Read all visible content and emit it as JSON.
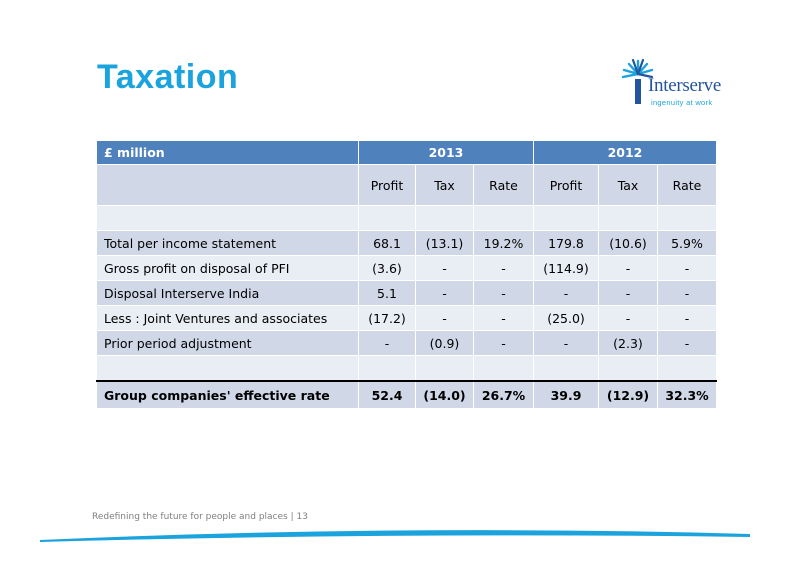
{
  "slide": {
    "title": "Taxation",
    "logo": {
      "name": "Interserve",
      "tagline": "ingenuity at work"
    },
    "footer": "Redefining the future for people and places | 13",
    "colors": {
      "title": "#1aa3dc",
      "header": "#4f81bd",
      "row_light": "#e9edf4",
      "row_dark": "#d0d8e8",
      "brand": "#23559c"
    }
  },
  "table": {
    "corner_label": "£ million",
    "years": [
      "2013",
      "2012"
    ],
    "subheaders": [
      "Profit",
      "Tax",
      "Rate",
      "Profit",
      "Tax",
      "Rate"
    ],
    "rows": [
      {
        "label": "",
        "cells": [
          "",
          "",
          "",
          "",
          "",
          ""
        ]
      },
      {
        "label": "Total per income statement",
        "cells": [
          "68.1",
          "(13.1)",
          "19.2%",
          "179.8",
          "(10.6)",
          "5.9%"
        ]
      },
      {
        "label": "Gross profit on disposal of PFI",
        "cells": [
          "(3.6)",
          "-",
          "-",
          "(114.9)",
          "-",
          "-"
        ]
      },
      {
        "label": "Disposal Interserve India",
        "cells": [
          "5.1",
          "-",
          "-",
          "-",
          "-",
          "-"
        ]
      },
      {
        "label": "Less : Joint Ventures and associates",
        "cells": [
          "(17.2)",
          "-",
          "-",
          "(25.0)",
          "-",
          "-"
        ]
      },
      {
        "label": "Prior period adjustment",
        "cells": [
          "-",
          "(0.9)",
          "-",
          "-",
          "(2.3)",
          "-"
        ]
      },
      {
        "label": "",
        "cells": [
          "",
          "",
          "",
          "",
          "",
          ""
        ]
      }
    ],
    "total": {
      "label": "Group companies' effective rate",
      "cells": [
        "52.4",
        "(14.0)",
        "26.7%",
        "39.9",
        "(12.9)",
        "32.3%"
      ]
    }
  }
}
